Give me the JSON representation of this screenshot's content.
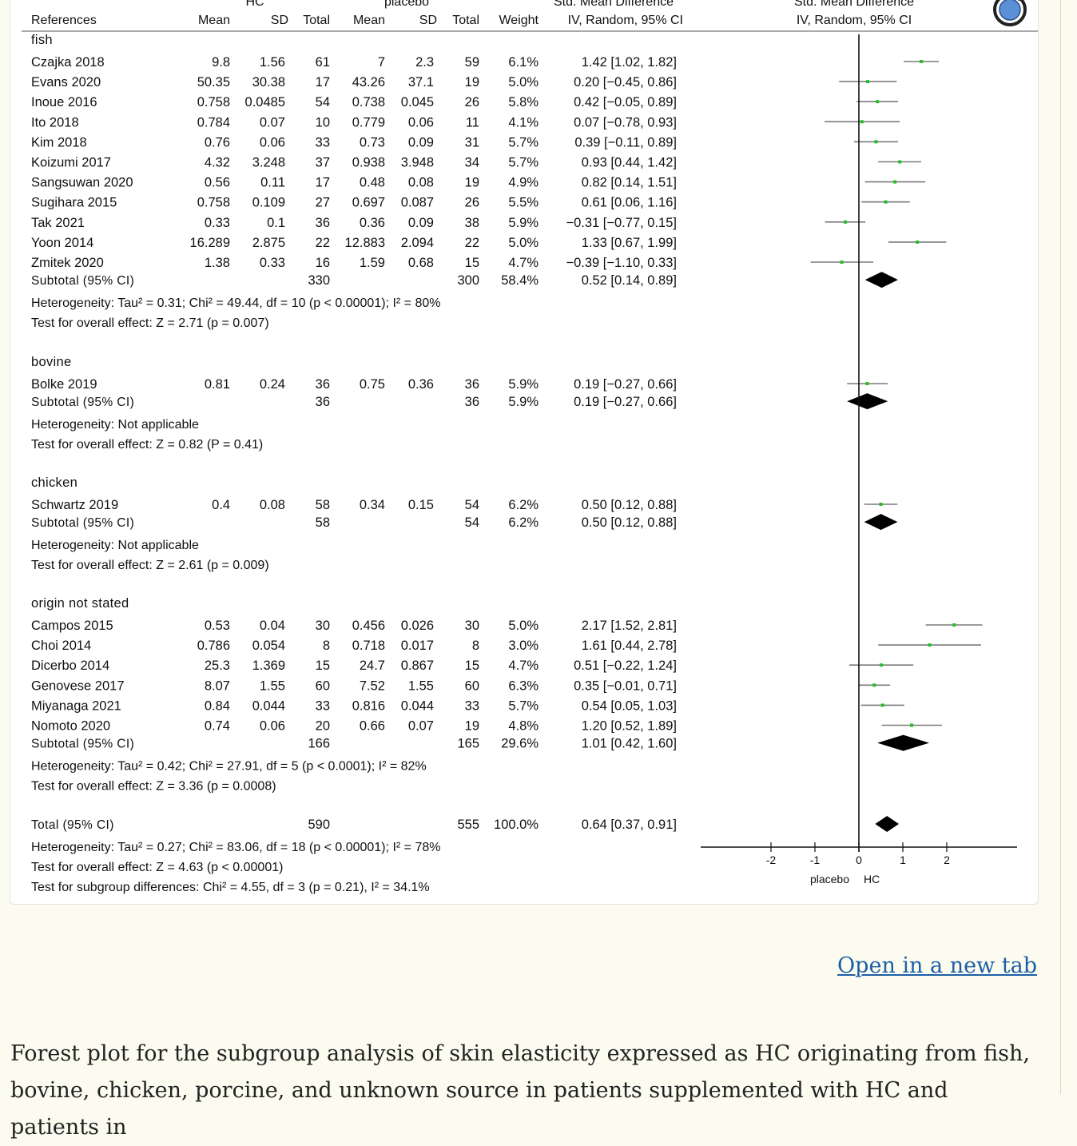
{
  "page": {
    "open_link": "Open in a new tab",
    "caption": "Forest plot for the subgroup analysis of skin elasticity expressed as HC originating from fish, bovine, chicken, porcine, and unknown source in patients supplemented with HC and patients in"
  },
  "toolbar": {
    "zoom_icon": "magnifier-icon"
  },
  "chart_data": {
    "type": "forest",
    "colors": {
      "point": "#22c022",
      "ci_line": "#7a7a7a",
      "diamond": "#000000",
      "axis": "#111111"
    },
    "headers": {
      "group_hc": "HC",
      "group_placebo": "placebo",
      "group_effect": "Std. Mean Difference",
      "group_effect_plot": "Std. Mean Difference",
      "references": "References",
      "hc_mean": "Mean",
      "hc_sd": "SD",
      "hc_total": "Total",
      "pl_mean": "Mean",
      "pl_sd": "SD",
      "pl_total": "Total",
      "weight": "Weight",
      "effect_method": "IV, Random, 95% CI",
      "plot_method": "IV, Random, 95% CI"
    },
    "axis": {
      "xlim": [
        -2,
        2
      ],
      "ticks": [
        "-2",
        "-1",
        "0",
        "1",
        "2"
      ],
      "left_label": "placebo",
      "right_label": "HC"
    },
    "groups": [
      {
        "name": "fish",
        "studies": [
          {
            "study": "Czajka 2018",
            "hc_mean": "9.8",
            "hc_sd": "1.56",
            "hc_n": "61",
            "pl_mean": "7",
            "pl_sd": "2.3",
            "pl_n": "59",
            "weight": "6.1%",
            "ci_text": "1.42 [1.02, 1.82]",
            "est": 1.42,
            "lo": 1.02,
            "hi": 1.82
          },
          {
            "study": "Evans 2020",
            "hc_mean": "50.35",
            "hc_sd": "30.38",
            "hc_n": "17",
            "pl_mean": "43.26",
            "pl_sd": "37.1",
            "pl_n": "19",
            "weight": "5.0%",
            "ci_text": "0.20 [−0.45, 0.86]",
            "est": 0.2,
            "lo": -0.45,
            "hi": 0.86
          },
          {
            "study": "Inoue 2016",
            "hc_mean": "0.758",
            "hc_sd": "0.0485",
            "hc_n": "54",
            "pl_mean": "0.738",
            "pl_sd": "0.045",
            "pl_n": "26",
            "weight": "5.8%",
            "ci_text": "0.42 [−0.05, 0.89]",
            "est": 0.42,
            "lo": -0.05,
            "hi": 0.89
          },
          {
            "study": "Ito 2018",
            "hc_mean": "0.784",
            "hc_sd": "0.07",
            "hc_n": "10",
            "pl_mean": "0.779",
            "pl_sd": "0.06",
            "pl_n": "11",
            "weight": "4.1%",
            "ci_text": "0.07 [−0.78, 0.93]",
            "est": 0.07,
            "lo": -0.78,
            "hi": 0.93
          },
          {
            "study": "Kim 2018",
            "hc_mean": "0.76",
            "hc_sd": "0.06",
            "hc_n": "33",
            "pl_mean": "0.73",
            "pl_sd": "0.09",
            "pl_n": "31",
            "weight": "5.7%",
            "ci_text": "0.39 [−0.11, 0.89]",
            "est": 0.39,
            "lo": -0.11,
            "hi": 0.89
          },
          {
            "study": "Koizumi 2017",
            "hc_mean": "4.32",
            "hc_sd": "3.248",
            "hc_n": "37",
            "pl_mean": "0.938",
            "pl_sd": "3.948",
            "pl_n": "34",
            "weight": "5.7%",
            "ci_text": "0.93 [0.44, 1.42]",
            "est": 0.93,
            "lo": 0.44,
            "hi": 1.42
          },
          {
            "study": "Sangsuwan 2020",
            "hc_mean": "0.56",
            "hc_sd": "0.11",
            "hc_n": "17",
            "pl_mean": "0.48",
            "pl_sd": "0.08",
            "pl_n": "19",
            "weight": "4.9%",
            "ci_text": "0.82 [0.14, 1.51]",
            "est": 0.82,
            "lo": 0.14,
            "hi": 1.51
          },
          {
            "study": "Sugihara 2015",
            "hc_mean": "0.758",
            "hc_sd": "0.109",
            "hc_n": "27",
            "pl_mean": "0.697",
            "pl_sd": "0.087",
            "pl_n": "26",
            "weight": "5.5%",
            "ci_text": "0.61 [0.06, 1.16]",
            "est": 0.61,
            "lo": 0.06,
            "hi": 1.16
          },
          {
            "study": "Tak 2021",
            "hc_mean": "0.33",
            "hc_sd": "0.1",
            "hc_n": "36",
            "pl_mean": "0.36",
            "pl_sd": "0.09",
            "pl_n": "38",
            "weight": "5.9%",
            "ci_text": "−0.31 [−0.77, 0.15]",
            "est": -0.31,
            "lo": -0.77,
            "hi": 0.15
          },
          {
            "study": "Yoon 2014",
            "hc_mean": "16.289",
            "hc_sd": "2.875",
            "hc_n": "22",
            "pl_mean": "12.883",
            "pl_sd": "2.094",
            "pl_n": "22",
            "weight": "5.0%",
            "ci_text": "1.33 [0.67, 1.99]",
            "est": 1.33,
            "lo": 0.67,
            "hi": 1.99
          },
          {
            "study": "Zmitek 2020",
            "hc_mean": "1.38",
            "hc_sd": "0.33",
            "hc_n": "16",
            "pl_mean": "1.59",
            "pl_sd": "0.68",
            "pl_n": "15",
            "weight": "4.7%",
            "ci_text": "−0.39 [−1.10, 0.33]",
            "est": -0.39,
            "lo": -1.1,
            "hi": 0.33
          }
        ],
        "subtotal": {
          "label": "Subtotal (95% CI)",
          "hc_n": "330",
          "pl_n": "300",
          "weight": "58.4%",
          "ci_text": "0.52 [0.14, 0.89]",
          "est": 0.52,
          "lo": 0.14,
          "hi": 0.89
        },
        "heterogeneity": "Heterogeneity: Tau² = 0.31; Chi² = 49.44, df = 10 (p < 0.00001); I² = 80%",
        "overall": "Test for overall effect: Z = 2.71 (p = 0.007)"
      },
      {
        "name": "bovine",
        "studies": [
          {
            "study": "Bolke 2019",
            "hc_mean": "0.81",
            "hc_sd": "0.24",
            "hc_n": "36",
            "pl_mean": "0.75",
            "pl_sd": "0.36",
            "pl_n": "36",
            "weight": "5.9%",
            "ci_text": "0.19 [−0.27, 0.66]",
            "est": 0.19,
            "lo": -0.27,
            "hi": 0.66
          }
        ],
        "subtotal": {
          "label": "Subtotal (95% CI)",
          "hc_n": "36",
          "pl_n": "36",
          "weight": "5.9%",
          "ci_text": "0.19 [−0.27, 0.66]",
          "est": 0.19,
          "lo": -0.27,
          "hi": 0.66
        },
        "heterogeneity": "Heterogeneity: Not applicable",
        "overall": "Test for overall effect: Z = 0.82 (P = 0.41)"
      },
      {
        "name": "chicken",
        "studies": [
          {
            "study": "Schwartz 2019",
            "hc_mean": "0.4",
            "hc_sd": "0.08",
            "hc_n": "58",
            "pl_mean": "0.34",
            "pl_sd": "0.15",
            "pl_n": "54",
            "weight": "6.2%",
            "ci_text": "0.50 [0.12, 0.88]",
            "est": 0.5,
            "lo": 0.12,
            "hi": 0.88
          }
        ],
        "subtotal": {
          "label": "Subtotal (95% CI)",
          "hc_n": "58",
          "pl_n": "54",
          "weight": "6.2%",
          "ci_text": "0.50 [0.12, 0.88]",
          "est": 0.5,
          "lo": 0.12,
          "hi": 0.88
        },
        "heterogeneity": "Heterogeneity: Not applicable",
        "overall": "Test for overall effect: Z = 2.61 (p = 0.009)"
      },
      {
        "name": "origin not stated",
        "studies": [
          {
            "study": "Campos 2015",
            "hc_mean": "0.53",
            "hc_sd": "0.04",
            "hc_n": "30",
            "pl_mean": "0.456",
            "pl_sd": "0.026",
            "pl_n": "30",
            "weight": "5.0%",
            "ci_text": "2.17 [1.52, 2.81]",
            "est": 2.17,
            "lo": 1.52,
            "hi": 2.81
          },
          {
            "study": "Choi 2014",
            "hc_mean": "0.786",
            "hc_sd": "0.054",
            "hc_n": "8",
            "pl_mean": "0.718",
            "pl_sd": "0.017",
            "pl_n": "8",
            "weight": "3.0%",
            "ci_text": "1.61 [0.44, 2.78]",
            "est": 1.61,
            "lo": 0.44,
            "hi": 2.78
          },
          {
            "study": "Dicerbo 2014",
            "hc_mean": "25.3",
            "hc_sd": "1.369",
            "hc_n": "15",
            "pl_mean": "24.7",
            "pl_sd": "0.867",
            "pl_n": "15",
            "weight": "4.7%",
            "ci_text": "0.51 [−0.22, 1.24]",
            "est": 0.51,
            "lo": -0.22,
            "hi": 1.24
          },
          {
            "study": "Genovese 2017",
            "hc_mean": "8.07",
            "hc_sd": "1.55",
            "hc_n": "60",
            "pl_mean": "7.52",
            "pl_sd": "1.55",
            "pl_n": "60",
            "weight": "6.3%",
            "ci_text": "0.35 [−0.01, 0.71]",
            "est": 0.35,
            "lo": -0.01,
            "hi": 0.71
          },
          {
            "study": "Miyanaga 2021",
            "hc_mean": "0.84",
            "hc_sd": "0.044",
            "hc_n": "33",
            "pl_mean": "0.816",
            "pl_sd": "0.044",
            "pl_n": "33",
            "weight": "5.7%",
            "ci_text": "0.54 [0.05, 1.03]",
            "est": 0.54,
            "lo": 0.05,
            "hi": 1.03
          },
          {
            "study": "Nomoto 2020",
            "hc_mean": "0.74",
            "hc_sd": "0.06",
            "hc_n": "20",
            "pl_mean": "0.66",
            "pl_sd": "0.07",
            "pl_n": "19",
            "weight": "4.8%",
            "ci_text": "1.20 [0.52, 1.89]",
            "est": 1.2,
            "lo": 0.52,
            "hi": 1.89
          }
        ],
        "subtotal": {
          "label": "Subtotal (95% CI)",
          "hc_n": "166",
          "pl_n": "165",
          "weight": "29.6%",
          "ci_text": "1.01 [0.42, 1.60]",
          "est": 1.01,
          "lo": 0.42,
          "hi": 1.6
        },
        "heterogeneity": "Heterogeneity: Tau² = 0.42; Chi² = 27.91, df = 5 (p < 0.0001); I² = 82%",
        "overall": "Test for overall effect: Z = 3.36 (p = 0.0008)"
      }
    ],
    "total": {
      "label": "Total (95% CI)",
      "hc_n": "590",
      "pl_n": "555",
      "weight": "100.0%",
      "ci_text": "0.64 [0.37, 0.91]",
      "est": 0.64,
      "lo": 0.37,
      "hi": 0.91,
      "heterogeneity": "Heterogeneity: Tau² = 0.27; Chi² = 83.06, df = 18 (p < 0.00001); I² = 78%",
      "overall": "Test for overall effect: Z = 4.63 (p < 0.00001)",
      "subgroup": "Test for subgroup differences: Chi² = 4.55, df = 3 (p = 0.21), I² = 34.1%"
    }
  }
}
